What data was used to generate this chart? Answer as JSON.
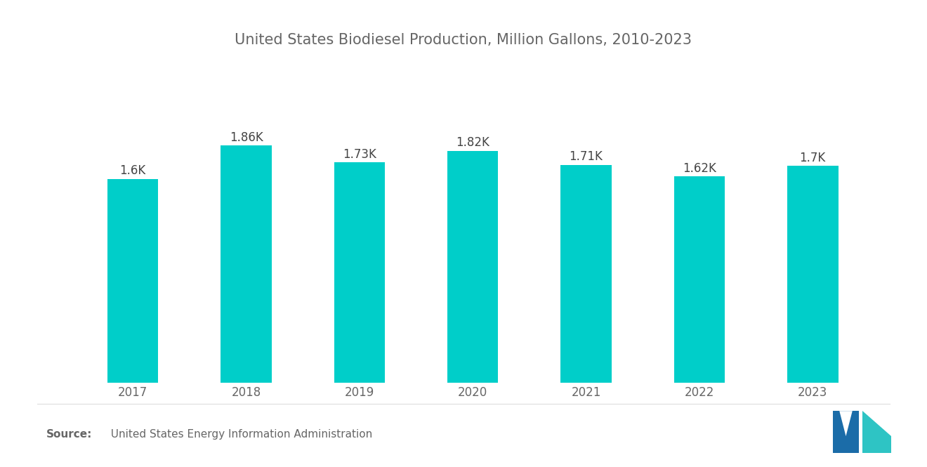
{
  "title": "United States Biodiesel Production, Million Gallons, 2010-2023",
  "categories": [
    "2017",
    "2018",
    "2019",
    "2020",
    "2021",
    "2022",
    "2023"
  ],
  "values": [
    1600,
    1860,
    1730,
    1820,
    1710,
    1620,
    1700
  ],
  "labels": [
    "1.6K",
    "1.86K",
    "1.73K",
    "1.82K",
    "1.71K",
    "1.62K",
    "1.7K"
  ],
  "bar_color": "#00CEC9",
  "background_color": "#FFFFFF",
  "title_fontsize": 15,
  "label_fontsize": 12,
  "tick_fontsize": 12,
  "source_bold": "Source:",
  "source_normal": "  United States Energy Information Administration",
  "source_fontsize": 11,
  "title_color": "#666666",
  "tick_color": "#666666",
  "label_color": "#444444",
  "source_color": "#666666",
  "logo_dark": "#1B6CA8",
  "logo_light": "#2EC4C4"
}
